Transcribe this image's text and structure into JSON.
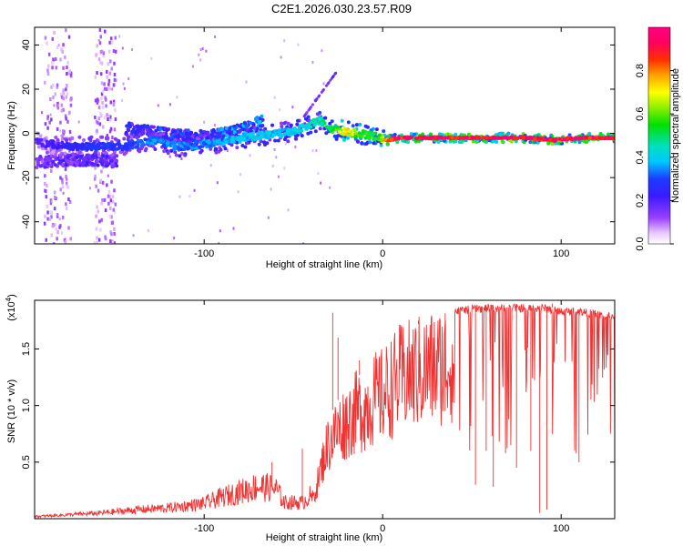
{
  "title": "C2E1.2026.030.23.57.R09",
  "chart_data": [
    {
      "type": "heatmap",
      "name": "spectrogram",
      "xlabel": "Height of straight line (km)",
      "ylabel": "Frequency (Hz)",
      "xlim": [
        -195,
        130
      ],
      "ylim": [
        -50,
        48
      ],
      "xticks": [
        -100,
        0,
        100
      ],
      "xtick_labels": [
        "-100",
        "0",
        "100"
      ],
      "yticks": [
        -40,
        -20,
        0,
        20,
        40
      ],
      "ytick_labels": [
        "-40",
        "-20",
        "0",
        "20",
        "40"
      ],
      "colorbar": {
        "label": "Normalized spectral amplitude",
        "range": [
          0,
          1
        ],
        "ticks": [
          0.0,
          0.2,
          0.4,
          0.6,
          0.8
        ],
        "tick_labels": [
          "0.0",
          "0.2",
          "0.4",
          "0.6",
          "0.8"
        ]
      },
      "ridge": {
        "x": [
          -195,
          -175,
          -160,
          -145,
          -130,
          -115,
          -100,
          -85,
          -70,
          -60,
          -50,
          -42,
          -36,
          -30,
          -22,
          -15,
          -8,
          -2,
          2,
          8,
          20,
          40,
          60,
          80,
          95,
          110,
          130
        ],
        "freq": [
          -4,
          -6,
          -6,
          -6,
          -3,
          -6,
          -5,
          -3,
          -1,
          0,
          1,
          4,
          6,
          2,
          1,
          0,
          -1,
          -2,
          -3,
          -2,
          -2,
          -2,
          -2,
          -2,
          -3,
          -2,
          -2
        ],
        "amplitude": [
          0.2,
          0.25,
          0.3,
          0.3,
          0.35,
          0.35,
          0.35,
          0.4,
          0.42,
          0.4,
          0.42,
          0.45,
          0.5,
          0.55,
          0.75,
          0.6,
          0.55,
          0.62,
          0.9,
          0.95,
          0.97,
          0.97,
          0.97,
          0.96,
          0.95,
          0.96,
          0.96
        ]
      },
      "upper_branch": {
        "x": [
          -145,
          -120,
          -100,
          -85,
          -75,
          -68
        ],
        "freq": [
          2,
          -1,
          -2,
          0,
          3,
          6
        ],
        "amplitude": [
          0.25,
          0.3,
          0.3,
          0.35,
          0.4,
          0.35
        ]
      },
      "lower_branch": {
        "x": [
          -195,
          -175,
          -160,
          -150
        ],
        "freq": [
          -13,
          -12,
          -12,
          -13
        ],
        "amplitude": [
          0.18,
          0.2,
          0.22,
          0.2
        ]
      }
    },
    {
      "type": "line",
      "name": "snr",
      "xlabel": "Height of straight line (km)",
      "ylabel": "SNR (10 * v/v)",
      "scale_label": "(x10",
      "scale_exp": "4",
      "scale_close": ")",
      "xlim": [
        -195,
        130
      ],
      "ylim": [
        0,
        1.93
      ],
      "xticks": [
        -100,
        0,
        100
      ],
      "xtick_labels": [
        "-100",
        "0",
        "100"
      ],
      "yticks": [
        0.5,
        1.0,
        1.5
      ],
      "ytick_labels": [
        "0.5",
        "1.0",
        "1.5"
      ],
      "color": "#ee3333",
      "envelope": {
        "x": [
          -195,
          -160,
          -140,
          -120,
          -100,
          -90,
          -80,
          -70,
          -60,
          -55,
          -45,
          -40,
          -38,
          -35,
          -32,
          -30,
          -25,
          -20,
          -15,
          -10,
          -5,
          0,
          5,
          10,
          20,
          30,
          40,
          50,
          60,
          70,
          80,
          90,
          100,
          110,
          120,
          130
        ],
        "value": [
          0.02,
          0.05,
          0.08,
          0.1,
          0.14,
          0.2,
          0.25,
          0.3,
          0.28,
          0.15,
          0.15,
          0.22,
          0.3,
          0.55,
          0.8,
          0.9,
          1.05,
          1.15,
          1.25,
          1.3,
          1.4,
          1.45,
          1.55,
          1.65,
          1.72,
          1.78,
          1.85,
          1.87,
          1.88,
          1.88,
          1.88,
          1.88,
          1.85,
          1.85,
          1.82,
          1.8
        ]
      },
      "spikes": {
        "x": [
          -62,
          -45,
          -28,
          -25,
          -13,
          20,
          35,
          52,
          58,
          62,
          75,
          83,
          88,
          92,
          95,
          110,
          126
        ],
        "value": [
          0.5,
          0.62,
          1.82,
          1.6,
          1.4,
          1.75,
          0.95,
          0.3,
          0.6,
          0.28,
          0.45,
          0.6,
          0.05,
          0.08,
          1.9,
          0.5,
          1.45
        ]
      }
    }
  ]
}
